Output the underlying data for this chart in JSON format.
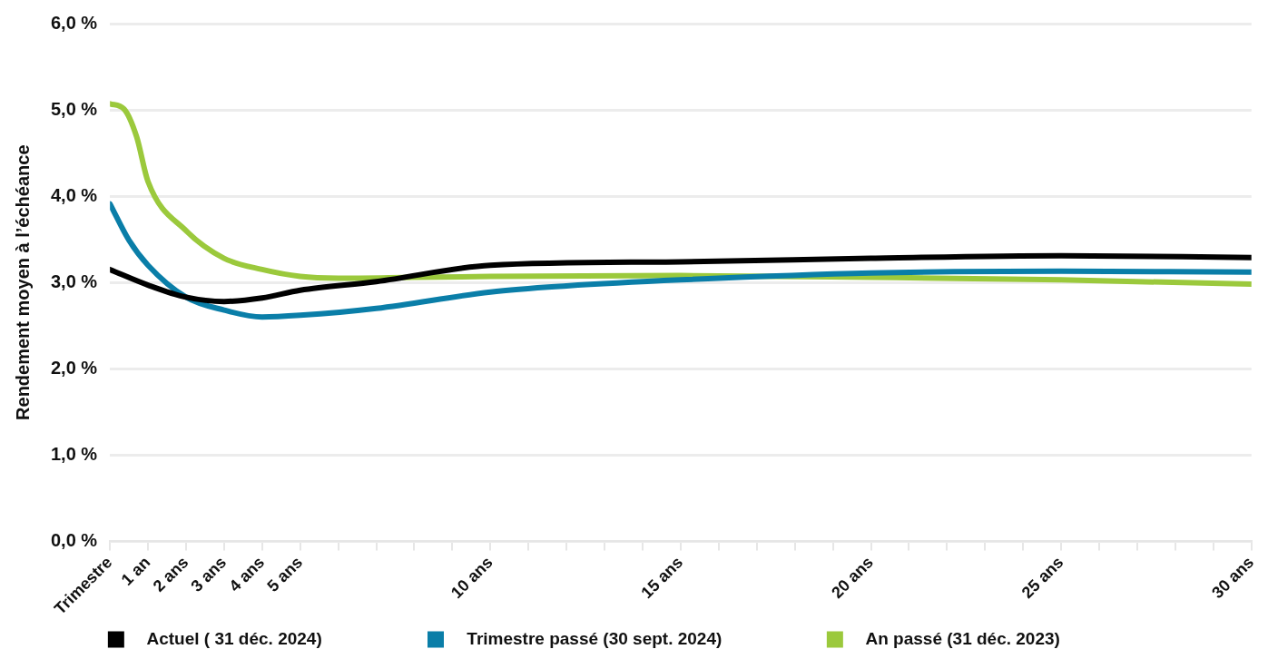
{
  "chart_data": {
    "type": "line",
    "ylabel": "Rendement moyen à l’échéance",
    "xlim": [
      0,
      30
    ],
    "xticks": [
      {
        "value": 0,
        "label": "Trimestre"
      },
      {
        "value": 1,
        "label": "1 an"
      },
      {
        "value": 2,
        "label": "2 ans"
      },
      {
        "value": 3,
        "label": "3 ans"
      },
      {
        "value": 4,
        "label": "4 ans"
      },
      {
        "value": 5,
        "label": "5 ans"
      },
      {
        "value": 6,
        "label": null
      },
      {
        "value": 7,
        "label": null
      },
      {
        "value": 8,
        "label": null
      },
      {
        "value": 9,
        "label": null
      },
      {
        "value": 10,
        "label": "10 ans"
      },
      {
        "value": 11,
        "label": null
      },
      {
        "value": 12,
        "label": null
      },
      {
        "value": 13,
        "label": null
      },
      {
        "value": 14,
        "label": null
      },
      {
        "value": 15,
        "label": "15 ans"
      },
      {
        "value": 16,
        "label": null
      },
      {
        "value": 17,
        "label": null
      },
      {
        "value": 18,
        "label": null
      },
      {
        "value": 19,
        "label": null
      },
      {
        "value": 20,
        "label": "20 ans"
      },
      {
        "value": 21,
        "label": null
      },
      {
        "value": 22,
        "label": null
      },
      {
        "value": 23,
        "label": null
      },
      {
        "value": 24,
        "label": null
      },
      {
        "value": 25,
        "label": "25 ans"
      },
      {
        "value": 26,
        "label": null
      },
      {
        "value": 27,
        "label": null
      },
      {
        "value": 28,
        "label": null
      },
      {
        "value": 29,
        "label": null
      },
      {
        "value": 30,
        "label": "30 ans"
      }
    ],
    "ylim": [
      0,
      6
    ],
    "yticks": [
      {
        "value": 0,
        "label": "0,0 %"
      },
      {
        "value": 1,
        "label": "1,0 %"
      },
      {
        "value": 2,
        "label": "2,0 %"
      },
      {
        "value": 3,
        "label": "3,0 %"
      },
      {
        "value": 4,
        "label": "4,0 %"
      },
      {
        "value": 5,
        "label": "5,0 %"
      },
      {
        "value": 6,
        "label": "6,0 %"
      }
    ],
    "grid": "y",
    "legend": "bottom",
    "marker": "none",
    "line_style": "solid",
    "series": [
      {
        "name": "Actuel ( 31 déc. 2024)",
        "color": "#000000",
        "x": [
          0,
          1,
          2,
          3,
          4,
          5,
          7,
          10,
          15,
          20,
          25,
          30
        ],
        "values": [
          3.15,
          2.97,
          2.83,
          2.78,
          2.82,
          2.91,
          3.01,
          3.2,
          3.24,
          3.28,
          3.31,
          3.29
        ]
      },
      {
        "name": "Trimestre passé (30 sept. 2024)",
        "color": "#0a7ea8",
        "x": [
          0,
          0.5,
          1,
          2,
          3,
          4,
          5,
          7,
          10,
          12,
          15,
          20,
          25,
          30
        ],
        "values": [
          3.91,
          3.49,
          3.2,
          2.83,
          2.68,
          2.6,
          2.62,
          2.7,
          2.89,
          2.96,
          3.03,
          3.11,
          3.13,
          3.12
        ]
      },
      {
        "name": "An passé (31 déc. 2023)",
        "color": "#9bc93c",
        "x": [
          0,
          0.37,
          0.7,
          1,
          2,
          3,
          4,
          5,
          6,
          8,
          10,
          15,
          20,
          25,
          30
        ],
        "values": [
          5.07,
          5.01,
          4.69,
          4.17,
          3.6,
          3.28,
          3.15,
          3.07,
          3.05,
          3.06,
          3.07,
          3.08,
          3.06,
          3.03,
          2.98
        ]
      }
    ]
  }
}
